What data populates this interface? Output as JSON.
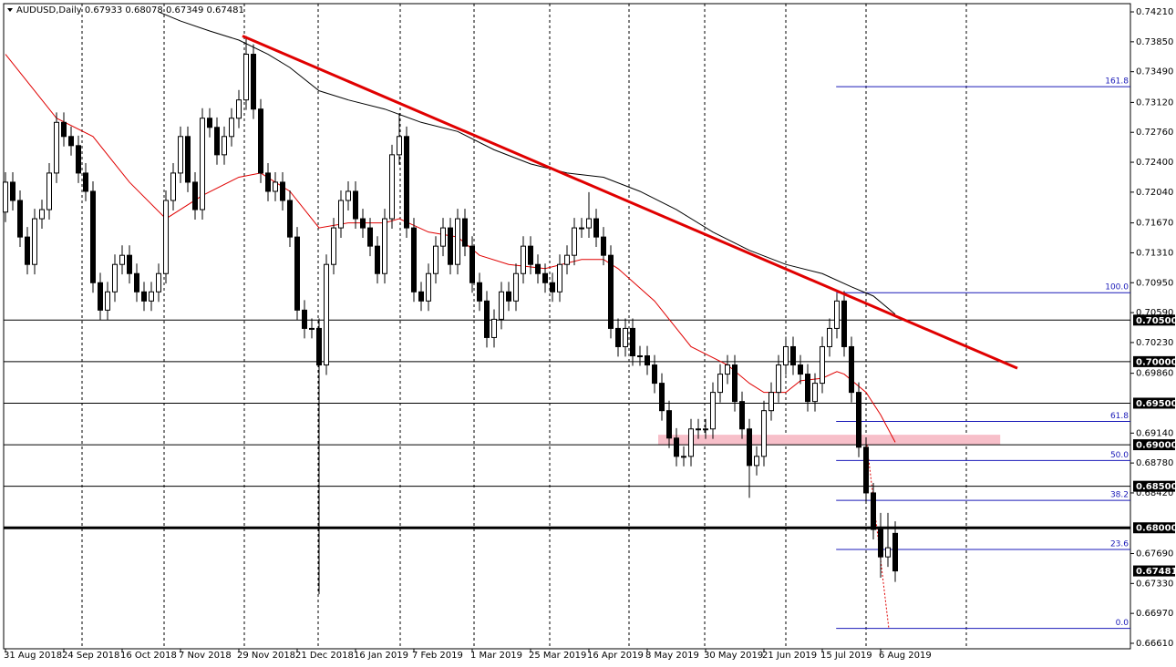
{
  "chart_data": {
    "type": "candlestick",
    "title": "AUDUSD,Daily  0.67933 0.68078 0.67349 0.67481",
    "categories": [
      "31 Aug 2018",
      null,
      null,
      null,
      null,
      null,
      null,
      null,
      "24 Sep 2018",
      null,
      null,
      null,
      null,
      null,
      null,
      null,
      "16 Oct 2018",
      null,
      null,
      null,
      null,
      null,
      null,
      null,
      "7 Nov 2018",
      null,
      null,
      null,
      null,
      null,
      null,
      null,
      "29 Nov 2018",
      null,
      null,
      null,
      null,
      null,
      null,
      null,
      "21 Dec 2018",
      null,
      null,
      null,
      null,
      null,
      null,
      null,
      "16 Jan 2019",
      null,
      null,
      null,
      null,
      null,
      null,
      null,
      "7 Feb 2019",
      null,
      null,
      null,
      null,
      null,
      null,
      null,
      "1 Mar 2019",
      null,
      null,
      null,
      null,
      null,
      null,
      null,
      "25 Mar 2019",
      null,
      null,
      null,
      null,
      null,
      null,
      null,
      "16 Apr 2019",
      null,
      null,
      null,
      null,
      null,
      null,
      null,
      "8 May 2019",
      null,
      null,
      null,
      null,
      null,
      null,
      null,
      "30 May 2019",
      null,
      null,
      null,
      null,
      null,
      null,
      null,
      "21 Jun 2019",
      null,
      null,
      null,
      null,
      null,
      null,
      null,
      "15 Jul 2019",
      null,
      null,
      null,
      null,
      null,
      null,
      null,
      "6 Aug 2019",
      null,
      null
    ],
    "open": [
      0.718,
      0.7216,
      0.7194,
      0.715,
      0.7117,
      0.7172,
      0.7183,
      0.7227,
      0.7288,
      0.7271,
      0.726,
      0.7227,
      0.7205,
      0.7095,
      0.7062,
      0.7084,
      0.7117,
      0.7128,
      0.7106,
      0.7084,
      0.7073,
      0.7084,
      0.7106,
      0.7194,
      0.7227,
      0.7271,
      0.7216,
      0.7183,
      0.7293,
      0.7282,
      0.7249,
      0.7271,
      0.7293,
      0.7315,
      0.737,
      0.7304,
      0.7227,
      0.7205,
      0.7216,
      0.7194,
      0.715,
      0.7062,
      0.704,
      0.704,
      0.6996,
      0.7117,
      0.7161,
      0.7194,
      0.7205,
      0.7172,
      0.7161,
      0.7139,
      0.7106,
      0.7172,
      0.7249,
      0.7271,
      0.7161,
      0.7084,
      0.7073,
      0.7106,
      0.7139,
      0.7161,
      0.7117,
      0.7172,
      0.7139,
      0.7095,
      0.7073,
      0.7029,
      0.7051,
      0.7084,
      0.7073,
      0.7106,
      0.7139,
      0.7117,
      0.7106,
      0.7095,
      0.7084,
      0.7117,
      0.7128,
      0.7161,
      0.7161,
      0.7172,
      0.715,
      0.7128,
      0.704,
      0.7018,
      0.704,
      0.7007,
      0.7007,
      0.6996,
      0.6974,
      0.6941,
      0.6908,
      0.6886,
      0.6886,
      0.6919,
      0.6919,
      0.6919,
      0.6963,
      0.6985,
      0.6996,
      0.6952,
      0.6919,
      0.6875,
      0.6886,
      0.6941,
      0.6963,
      0.6996,
      0.7018,
      0.6996,
      0.6985,
      0.6952,
      0.6974,
      0.7018,
      0.704,
      0.7073,
      0.7018,
      0.6963,
      0.6897,
      0.6842,
      0.6798,
      0.6765,
      0.67933
    ],
    "high": [
      0.7228,
      0.7228,
      0.7206,
      0.7162,
      0.7184,
      0.7195,
      0.7239,
      0.73,
      0.73,
      0.7283,
      0.7272,
      0.7239,
      0.7217,
      0.7107,
      0.7096,
      0.7129,
      0.714,
      0.714,
      0.7118,
      0.7096,
      0.7096,
      0.7118,
      0.7206,
      0.7239,
      0.7283,
      0.7283,
      0.7228,
      0.7305,
      0.7305,
      0.7294,
      0.7283,
      0.7305,
      0.7327,
      0.7392,
      0.7382,
      0.7316,
      0.7239,
      0.7228,
      0.7228,
      0.7206,
      0.7162,
      0.7074,
      0.7052,
      0.7052,
      0.7129,
      0.7173,
      0.7206,
      0.7217,
      0.7217,
      0.7184,
      0.7173,
      0.7151,
      0.7184,
      0.7261,
      0.7299,
      0.7283,
      0.7173,
      0.7096,
      0.7118,
      0.7151,
      0.7173,
      0.7173,
      0.7184,
      0.7184,
      0.7151,
      0.7107,
      0.7085,
      0.7063,
      0.7096,
      0.7096,
      0.7118,
      0.7151,
      0.7151,
      0.7129,
      0.7118,
      0.7107,
      0.7129,
      0.714,
      0.7173,
      0.7173,
      0.7204,
      0.7184,
      0.7162,
      0.714,
      0.7052,
      0.7052,
      0.7052,
      0.7019,
      0.7019,
      0.7008,
      0.6986,
      0.6953,
      0.692,
      0.6898,
      0.6931,
      0.6931,
      0.6931,
      0.6975,
      0.6997,
      0.7008,
      0.7008,
      0.6964,
      0.6931,
      0.6898,
      0.6953,
      0.6975,
      0.7008,
      0.703,
      0.703,
      0.7008,
      0.6997,
      0.6986,
      0.703,
      0.7052,
      0.7082,
      0.7085,
      0.703,
      0.6975,
      0.6909,
      0.6854,
      0.6818,
      0.6818,
      0.68078
    ],
    "low": [
      0.7168,
      0.7182,
      0.7138,
      0.7105,
      0.7105,
      0.716,
      0.7171,
      0.7215,
      0.7259,
      0.7248,
      0.7215,
      0.7193,
      0.7083,
      0.705,
      0.705,
      0.7072,
      0.7105,
      0.7094,
      0.7072,
      0.7061,
      0.7061,
      0.7072,
      0.7094,
      0.7182,
      0.7215,
      0.7204,
      0.7171,
      0.7171,
      0.727,
      0.7237,
      0.7237,
      0.7259,
      0.7281,
      0.7303,
      0.7292,
      0.7215,
      0.7193,
      0.7193,
      0.7182,
      0.7138,
      0.705,
      0.7028,
      0.7028,
      0.672,
      0.6984,
      0.7105,
      0.7149,
      0.7182,
      0.716,
      0.7149,
      0.7127,
      0.7094,
      0.7094,
      0.716,
      0.7237,
      0.7149,
      0.7072,
      0.7061,
      0.7061,
      0.7094,
      0.7127,
      0.7105,
      0.7105,
      0.7127,
      0.7083,
      0.7061,
      0.7017,
      0.7017,
      0.7039,
      0.7061,
      0.7061,
      0.7094,
      0.7105,
      0.7094,
      0.7083,
      0.7072,
      0.7072,
      0.7105,
      0.7116,
      0.7149,
      0.7149,
      0.7138,
      0.7116,
      0.7028,
      0.7006,
      0.7006,
      0.6995,
      0.6995,
      0.6984,
      0.6962,
      0.6929,
      0.6896,
      0.6874,
      0.6874,
      0.6874,
      0.6907,
      0.6907,
      0.6907,
      0.6951,
      0.6973,
      0.694,
      0.6907,
      0.6836,
      0.6863,
      0.6874,
      0.6929,
      0.6951,
      0.6984,
      0.6984,
      0.6973,
      0.694,
      0.694,
      0.6962,
      0.7006,
      0.7028,
      0.7006,
      0.6951,
      0.6885,
      0.683,
      0.6786,
      0.674,
      0.6753,
      0.67349
    ],
    "close": [
      0.7216,
      0.7194,
      0.715,
      0.7117,
      0.7172,
      0.7183,
      0.7227,
      0.7288,
      0.7271,
      0.726,
      0.7227,
      0.7205,
      0.7095,
      0.7062,
      0.7084,
      0.7117,
      0.7128,
      0.7106,
      0.7084,
      0.7073,
      0.7084,
      0.7106,
      0.7194,
      0.7227,
      0.7271,
      0.7216,
      0.7183,
      0.7293,
      0.7282,
      0.7249,
      0.7271,
      0.7293,
      0.7315,
      0.737,
      0.7304,
      0.7227,
      0.7205,
      0.7216,
      0.7194,
      0.715,
      0.7062,
      0.704,
      0.704,
      0.6996,
      0.7117,
      0.7161,
      0.7194,
      0.7205,
      0.7172,
      0.7161,
      0.7139,
      0.7106,
      0.7172,
      0.7249,
      0.7271,
      0.7161,
      0.7084,
      0.7073,
      0.7106,
      0.7139,
      0.7161,
      0.7117,
      0.7172,
      0.7139,
      0.7095,
      0.7073,
      0.7029,
      0.7051,
      0.7084,
      0.7073,
      0.7106,
      0.7139,
      0.7117,
      0.7106,
      0.7095,
      0.7084,
      0.7117,
      0.7128,
      0.7161,
      0.7161,
      0.7172,
      0.715,
      0.7128,
      0.704,
      0.7018,
      0.704,
      0.7007,
      0.7007,
      0.6996,
      0.6974,
      0.6941,
      0.6908,
      0.6886,
      0.6886,
      0.6919,
      0.6919,
      0.6919,
      0.6963,
      0.6985,
      0.6996,
      0.6952,
      0.6919,
      0.6875,
      0.6886,
      0.6941,
      0.6963,
      0.6996,
      0.7018,
      0.6996,
      0.6985,
      0.6952,
      0.6974,
      0.7018,
      0.704,
      0.7073,
      0.7018,
      0.6963,
      0.6897,
      0.6842,
      0.6798,
      0.6765,
      0.6776,
      0.67481
    ],
    "ylim": [
      0.66544,
      0.74309
    ],
    "yticks": [
      {
        "value": 0.7421,
        "label": "0.74210"
      },
      {
        "value": 0.7385,
        "label": "0.73850"
      },
      {
        "value": 0.7349,
        "label": "0.73490"
      },
      {
        "value": 0.7312,
        "label": "0.73120"
      },
      {
        "value": 0.7276,
        "label": "0.72760"
      },
      {
        "value": 0.724,
        "label": "0.72400"
      },
      {
        "value": 0.7204,
        "label": "0.72040"
      },
      {
        "value": 0.7167,
        "label": "0.71670"
      },
      {
        "value": 0.7131,
        "label": "0.71310"
      },
      {
        "value": 0.7095,
        "label": "0.70950"
      },
      {
        "value": 0.7059,
        "label": "0.70590"
      },
      {
        "value": 0.7023,
        "label": "0.70230"
      },
      {
        "value": 0.6986,
        "label": "0.69860"
      },
      {
        "value": 0.6914,
        "label": "0.69140"
      },
      {
        "value": 0.6878,
        "label": "0.68780"
      },
      {
        "value": 0.6842,
        "label": "0.68420"
      },
      {
        "value": 0.6769,
        "label": "0.67690"
      },
      {
        "value": 0.6733,
        "label": "0.67330"
      },
      {
        "value": 0.6697,
        "label": "0.66970"
      },
      {
        "value": 0.6661,
        "label": "0.66610"
      }
    ],
    "levels": [
      {
        "value": 0.705,
        "label": "0.70500"
      },
      {
        "value": 0.7,
        "label": "0.70000"
      },
      {
        "value": 0.695,
        "label": "0.69500"
      },
      {
        "value": 0.69,
        "label": "0.69000"
      },
      {
        "value": 0.685,
        "label": "0.68500"
      }
    ],
    "key_level": {
      "value": 0.68,
      "label": "0.68000"
    },
    "last_price": {
      "value": 0.67481,
      "label": "0.67481"
    },
    "moving_averages": [
      {
        "color": "#e00000",
        "x": [
          0,
          7,
          12,
          17,
          22,
          27,
          32,
          35,
          39,
          43,
          47,
          52,
          54,
          58,
          62,
          65,
          69,
          74,
          79,
          82,
          84,
          89,
          94,
          99,
          102,
          104,
          107,
          109,
          112,
          114,
          115,
          118,
          120,
          122
        ],
        "values": [
          0.737,
          0.7293,
          0.7271,
          0.7216,
          0.7172,
          0.72,
          0.7222,
          0.7227,
          0.7205,
          0.7161,
          0.7167,
          0.7167,
          0.7172,
          0.7156,
          0.715,
          0.7128,
          0.7117,
          0.7112,
          0.7123,
          0.7123,
          0.7112,
          0.7073,
          0.7018,
          0.6996,
          0.6974,
          0.6963,
          0.6963,
          0.6977,
          0.698,
          0.6988,
          0.6985,
          0.6963,
          0.6936,
          0.6903
        ]
      },
      {
        "color": "#000000",
        "x": [
          21,
          24,
          28,
          32,
          36,
          39,
          43,
          47,
          52,
          57,
          62,
          67,
          72,
          77,
          82,
          87,
          92,
          97,
          102,
          107,
          112,
          116,
          119,
          122
        ],
        "values": [
          0.7421,
          0.741,
          0.7398,
          0.7387,
          0.737,
          0.7354,
          0.7326,
          0.7315,
          0.7304,
          0.7288,
          0.7277,
          0.7255,
          0.7238,
          0.7227,
          0.7222,
          0.7205,
          0.7183,
          0.7156,
          0.7134,
          0.7117,
          0.7106,
          0.709,
          0.7079,
          0.7057
        ]
      }
    ],
    "trendline": {
      "color": "#e00000",
      "x": [
        32.5,
        138.75
      ],
      "values": [
        0.7392,
        0.6992
      ]
    },
    "zone": {
      "color": "#f7bfc9",
      "x": [
        89.5,
        136.4
      ],
      "values": [
        0.6912,
        0.69
      ]
    },
    "fibonacci": {
      "color": "#1a1ab8",
      "x_start": 113.9,
      "levels": [
        {
          "label": "161.8",
          "value": 0.7331
        },
        {
          "label": "100.0",
          "value": 0.7083
        },
        {
          "label": "61.8",
          "value": 0.6928
        },
        {
          "label": "50.0",
          "value": 0.6881
        },
        {
          "label": "38.2",
          "value": 0.6833
        },
        {
          "label": "23.6",
          "value": 0.6774
        },
        {
          "label": "0.0",
          "value": 0.6679
        }
      ]
    }
  }
}
